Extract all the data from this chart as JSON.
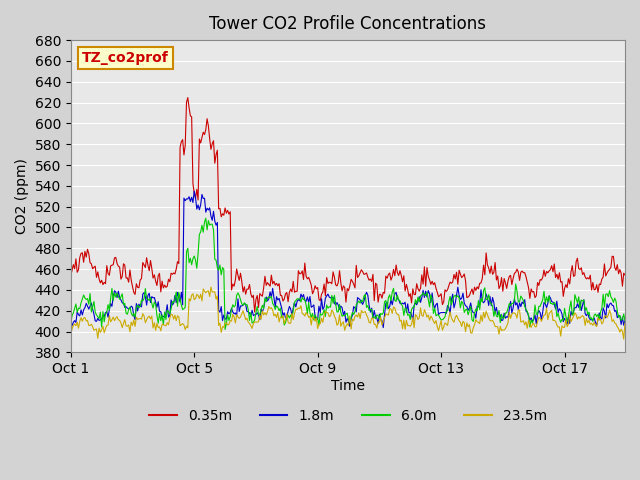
{
  "title": "Tower CO2 Profile Concentrations",
  "xlabel": "Time",
  "ylabel": "CO2 (ppm)",
  "ylim": [
    380,
    680
  ],
  "yticks": [
    380,
    400,
    420,
    440,
    460,
    480,
    500,
    520,
    540,
    560,
    580,
    600,
    620,
    640,
    660,
    680
  ],
  "legend_labels": [
    "0.35m",
    "1.8m",
    "6.0m",
    "23.5m"
  ],
  "line_colors": [
    "#cc0000",
    "#0000cc",
    "#00cc00",
    "#ccaa00"
  ],
  "background_color": "#e8e8e8",
  "plot_bg_color": "#e8e8e8",
  "grid_color": "#ffffff",
  "annotation_text": "TZ_co2prof",
  "annotation_bg": "#ffffcc",
  "annotation_border": "#cc8800",
  "annotation_text_color": "#cc0000",
  "xtick_labels": [
    "Oct 1",
    "Oct 5",
    "Oct 9",
    "Oct 13",
    "Oct 17"
  ],
  "xtick_positions": [
    0,
    96,
    192,
    288,
    384
  ],
  "n_points": 432,
  "seed": 42
}
